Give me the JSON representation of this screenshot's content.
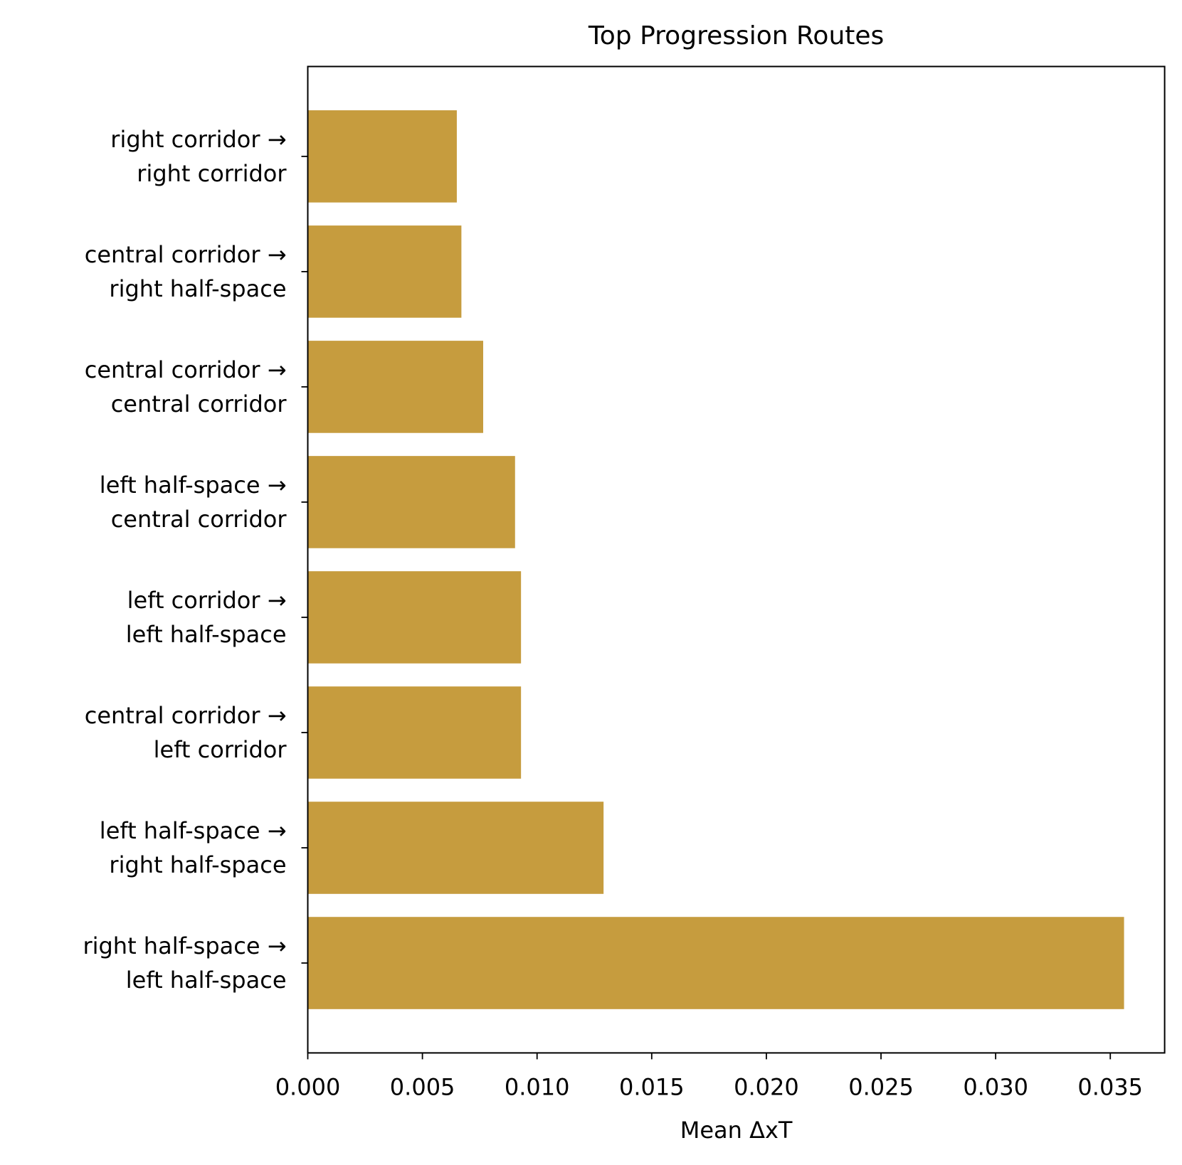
{
  "chart_data": {
    "type": "barh",
    "title": "Top Progression Routes",
    "x_label": "Mean ΔxT",
    "categories": [
      "right corridor →\nright corridor",
      "central corridor →\nright half-space",
      "central corridor →\ncentral corridor",
      "left half-space →\ncentral corridor",
      "left corridor →\nleft half-space",
      "central corridor →\nleft corridor",
      "left half-space →\nright half-space",
      "right half-space →\nleft half-space"
    ],
    "values": [
      0.0065,
      0.0067,
      0.00765,
      0.00904,
      0.0093,
      0.0093,
      0.0129,
      0.0356
    ],
    "color": "#c69c3e",
    "xlim": [
      0,
      0.03737
    ],
    "xticks": [
      {
        "value": 0,
        "label": "0.000"
      },
      {
        "value": 0.005,
        "label": "0.005"
      },
      {
        "value": 0.01,
        "label": "0.010"
      },
      {
        "value": 0.015,
        "label": "0.015"
      },
      {
        "value": 0.02,
        "label": "0.020"
      },
      {
        "value": 0.025,
        "label": "0.025"
      },
      {
        "value": 0.03,
        "label": "0.030"
      },
      {
        "value": 0.035,
        "label": "0.035"
      }
    ],
    "grid": false
  }
}
